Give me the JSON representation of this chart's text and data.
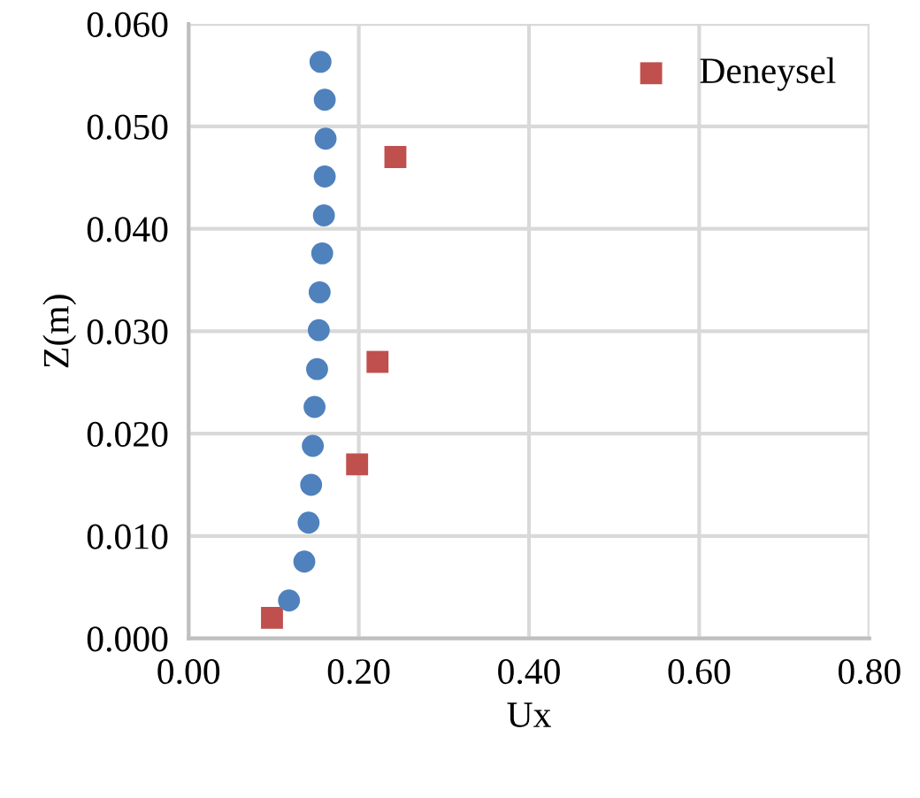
{
  "chart_data": {
    "type": "scatter",
    "xlabel": "Ux",
    "ylabel": "Z(m)",
    "xlim": [
      0,
      0.8
    ],
    "xticks": [
      {
        "value": 0,
        "label": "0.00"
      },
      {
        "value": 0.2,
        "label": "0.20"
      },
      {
        "value": 0.4,
        "label": "0.40"
      },
      {
        "value": 0.6,
        "label": "0.60"
      },
      {
        "value": 0.8,
        "label": "0.80"
      }
    ],
    "ylim": [
      0,
      0.06
    ],
    "yticks": [
      {
        "value": 0,
        "label": "0.000"
      },
      {
        "value": 0.01,
        "label": "0.010"
      },
      {
        "value": 0.02,
        "label": "0.020"
      },
      {
        "value": 0.03,
        "label": "0.030"
      },
      {
        "value": 0.04,
        "label": "0.040"
      },
      {
        "value": 0.05,
        "label": "0.050"
      },
      {
        "value": 0.06,
        "label": "0.060"
      }
    ],
    "grid": true,
    "legend": "top right",
    "series": [
      {
        "name": "Deneysel",
        "color": "#c0504d",
        "marker": "square",
        "x": [
          0.098,
          0.198,
          0.222,
          0.243
        ],
        "values": [
          0.002,
          0.017,
          0.027,
          0.047
        ]
      },
      {
        "color": "#4f81bd",
        "marker": "circle",
        "x": [
          0.155,
          0.16,
          0.161,
          0.16,
          0.159,
          0.157,
          0.154,
          0.153,
          0.151,
          0.148,
          0.146,
          0.144,
          0.141,
          0.136,
          0.118
        ],
        "values": [
          0.0563,
          0.0526,
          0.0488,
          0.0451,
          0.0413,
          0.0376,
          0.0338,
          0.0301,
          0.0263,
          0.0226,
          0.0188,
          0.015,
          0.0113,
          0.0075,
          0.0037
        ]
      }
    ]
  }
}
